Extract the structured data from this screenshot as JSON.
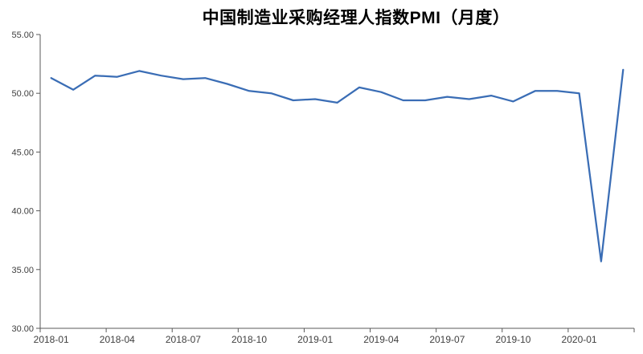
{
  "chart_data": {
    "type": "line",
    "title": "中国制造业采购经理人指数PMI（月度）",
    "x": [
      "2018-01",
      "2018-02",
      "2018-03",
      "2018-04",
      "2018-05",
      "2018-06",
      "2018-07",
      "2018-08",
      "2018-09",
      "2018-10",
      "2018-11",
      "2018-12",
      "2019-01",
      "2019-02",
      "2019-03",
      "2019-04",
      "2019-05",
      "2019-06",
      "2019-07",
      "2019-08",
      "2019-09",
      "2019-10",
      "2019-11",
      "2019-12",
      "2020-01",
      "2020-02",
      "2020-03"
    ],
    "values": [
      51.3,
      50.3,
      51.5,
      51.4,
      51.9,
      51.5,
      51.2,
      51.3,
      50.8,
      50.2,
      50.0,
      49.4,
      49.5,
      49.2,
      50.5,
      50.1,
      49.4,
      49.4,
      49.7,
      49.5,
      49.8,
      49.3,
      50.2,
      50.2,
      50.0,
      35.7,
      52.0
    ],
    "xlabel": "",
    "ylabel": "",
    "ylim": [
      30,
      55
    ],
    "ytick_step": 5,
    "ytick_decimals": 2,
    "x_label_every": 3,
    "x_tick_labels": [
      "2018-01",
      "2018-04",
      "2018-07",
      "2018-10",
      "2019-01",
      "2019-04",
      "2019-07",
      "2019-10",
      "2020-01"
    ],
    "grid": "off",
    "legend": "none",
    "line_color": "#3A6DB5",
    "axis_color": "#595959",
    "tick_label_color": "#404040",
    "background_color": "#ffffff"
  }
}
